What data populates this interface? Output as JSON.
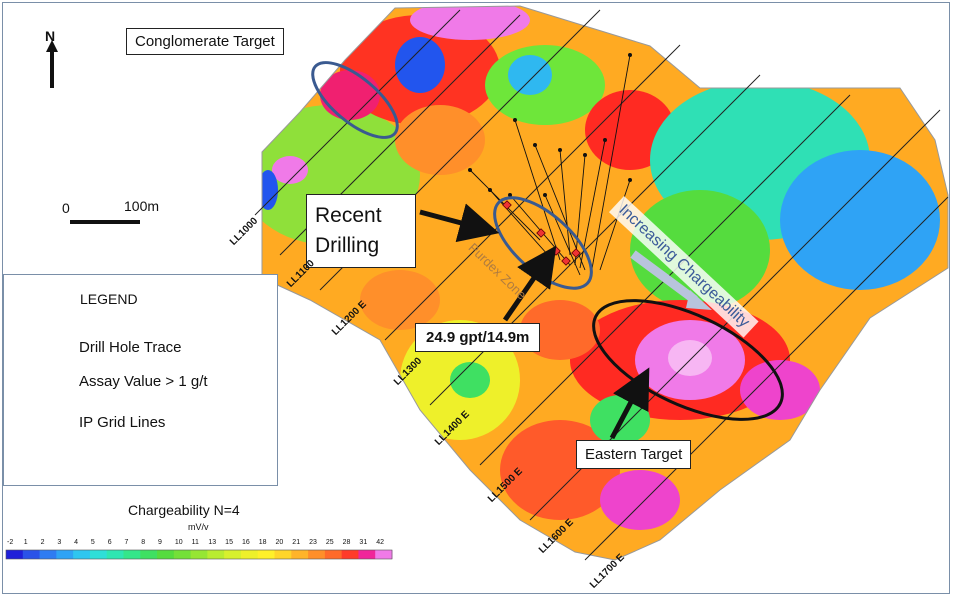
{
  "labels": {
    "conglomerate_target": "Conglomerate Target",
    "recent_drilling": "Recent Drilling",
    "assay_callout": "24.9 gpt/14.9m",
    "eastern_target": "Eastern Target",
    "increasing_chargeability": "Increasing Chargeability",
    "purdex_zone": "Purdex Zone"
  },
  "north_arrow": {
    "label": "N"
  },
  "scale_bar": {
    "start": "0",
    "distance": "100m"
  },
  "legend": {
    "title": "LEGEND",
    "items": [
      {
        "symbol": "drill-hole-trace-icon",
        "label": "Drill Hole Trace"
      },
      {
        "symbol": "assay-marker-icon",
        "label": "Assay Value > 1 g/t"
      },
      {
        "symbol": "ip-grid-line-icon",
        "label": "IP Grid Lines"
      }
    ]
  },
  "grid_lines": [
    "LL1000",
    "LL1100",
    "LL1200 E",
    "LL1300",
    "LL1400 E",
    "LL1500 E",
    "LL1600 E",
    "LL1700 E"
  ],
  "colorbar": {
    "title": "Chargeability N=4",
    "unit": "mV/v",
    "ticks": [
      "-2",
      "1",
      "2",
      "3",
      "4",
      "5",
      "6",
      "7",
      "8",
      "9",
      "10",
      "11",
      "13",
      "15",
      "16",
      "18",
      "20",
      "21",
      "23",
      "25",
      "28",
      "31",
      "42"
    ],
    "colors": [
      "#1f1fd9",
      "#2a52e8",
      "#2f7cf2",
      "#2fa3f5",
      "#2fc6f0",
      "#2fdfd8",
      "#2fe6b2",
      "#35e68a",
      "#3fe062",
      "#55dc3e",
      "#74e038",
      "#96e633",
      "#b9ec30",
      "#d7f02d",
      "#eef02a",
      "#fff02a",
      "#ffd52a",
      "#ffb42a",
      "#ff8f2a",
      "#ff6a2a",
      "#ff3b2a",
      "#f0259a",
      "#f07ae8"
    ]
  }
}
